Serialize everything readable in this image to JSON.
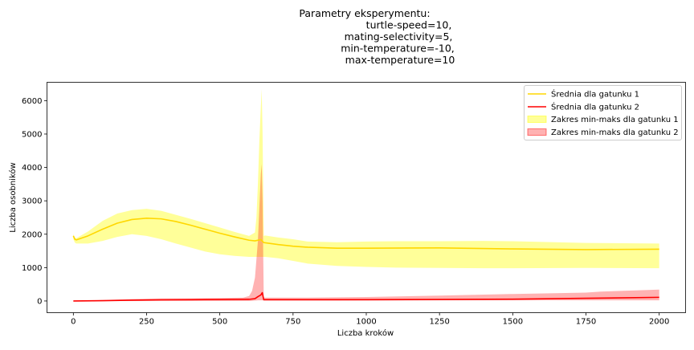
{
  "chart_data": {
    "type": "line",
    "title_lines": [
      "Parametry eksperymentu:",
      "turtle-speed=10,",
      "mating-selectivity=5,",
      "min-temperature=-10,",
      "max-temperature=10"
    ],
    "xlabel": "Liczba kroków",
    "ylabel": "Liczba osobników",
    "xlim": [
      -90,
      2090
    ],
    "ylim": [
      -350,
      6550
    ],
    "xticks": [
      0,
      250,
      500,
      750,
      1000,
      1250,
      1500,
      1750,
      2000
    ],
    "yticks": [
      0,
      1000,
      2000,
      3000,
      4000,
      5000,
      6000
    ],
    "grid": false,
    "legend_position": "top-right",
    "legend": [
      {
        "label": "Średnia dla gatunku 1",
        "kind": "line",
        "color": "#ffd700"
      },
      {
        "label": "Średnia dla gatunku 2",
        "kind": "line",
        "color": "#ff0000"
      },
      {
        "label": "Zakres min-maks dla gatunku 1",
        "kind": "band",
        "color": "#ffff00"
      },
      {
        "label": "Zakres min-maks dla gatunku 2",
        "kind": "band",
        "color": "#ff0000"
      }
    ],
    "series": [
      {
        "name": "Średnia dla gatunku 1",
        "color": "#ffd700",
        "x": [
          0,
          5,
          10,
          50,
          100,
          150,
          200,
          250,
          300,
          350,
          400,
          450,
          500,
          550,
          600,
          620,
          640,
          650,
          700,
          750,
          800,
          900,
          1000,
          1250,
          1500,
          1750,
          2000
        ],
        "y": [
          1950,
          1850,
          1830,
          1950,
          2150,
          2330,
          2440,
          2480,
          2460,
          2380,
          2270,
          2150,
          2030,
          1920,
          1820,
          1800,
          1840,
          1750,
          1690,
          1640,
          1610,
          1580,
          1580,
          1590,
          1560,
          1540,
          1550
        ]
      },
      {
        "name": "Średnia dla gatunku 2",
        "color": "#ff0000",
        "x": [
          0,
          100,
          200,
          300,
          400,
          500,
          600,
          620,
          630,
          640,
          645,
          650,
          700,
          800,
          1000,
          1250,
          1500,
          1750,
          2000
        ],
        "y": [
          0,
          10,
          25,
          35,
          40,
          45,
          50,
          70,
          130,
          180,
          250,
          40,
          40,
          40,
          40,
          45,
          55,
          80,
          110
        ]
      }
    ],
    "bands": [
      {
        "name": "Zakres min-maks dla gatunku 1",
        "color": "#ffff00",
        "x": [
          0,
          5,
          10,
          50,
          100,
          150,
          200,
          250,
          300,
          350,
          400,
          450,
          500,
          550,
          600,
          620,
          625,
          630,
          635,
          640,
          643,
          646,
          650,
          655,
          700,
          750,
          800,
          900,
          1000,
          1100,
          1250,
          1400,
          1500,
          1750,
          2000
        ],
        "low": [
          1850,
          1750,
          1720,
          1720,
          1800,
          1920,
          2000,
          1950,
          1850,
          1720,
          1600,
          1480,
          1400,
          1350,
          1320,
          1320,
          1320,
          1320,
          1320,
          1320,
          1320,
          1320,
          1320,
          1320,
          1280,
          1200,
          1120,
          1050,
          1020,
          1000,
          990,
          980,
          980,
          990,
          980
        ],
        "high": [
          2000,
          1900,
          1880,
          2080,
          2400,
          2620,
          2720,
          2760,
          2700,
          2580,
          2460,
          2330,
          2200,
          2070,
          1950,
          2050,
          2500,
          3500,
          4800,
          5800,
          6350,
          5000,
          1950,
          1960,
          1900,
          1850,
          1780,
          1760,
          1780,
          1790,
          1790,
          1800,
          1790,
          1740,
          1720
        ]
      },
      {
        "name": "Zakres min-maks dla gatunku 2",
        "color": "#ff0000",
        "x": [
          0,
          100,
          200,
          300,
          400,
          500,
          580,
          600,
          610,
          620,
          630,
          635,
          640,
          643,
          646,
          650,
          655,
          700,
          800,
          900,
          1000,
          1250,
          1500,
          1750,
          1800,
          2000
        ],
        "low": [
          0,
          0,
          0,
          0,
          0,
          0,
          0,
          0,
          5,
          10,
          20,
          20,
          20,
          20,
          20,
          10,
          10,
          10,
          10,
          10,
          15,
          20,
          20,
          20,
          20,
          20
        ],
        "high": [
          0,
          30,
          60,
          80,
          80,
          90,
          100,
          150,
          300,
          700,
          1800,
          2800,
          3800,
          4100,
          3000,
          100,
          100,
          100,
          100,
          110,
          120,
          160,
          210,
          250,
          280,
          340
        ]
      }
    ]
  }
}
